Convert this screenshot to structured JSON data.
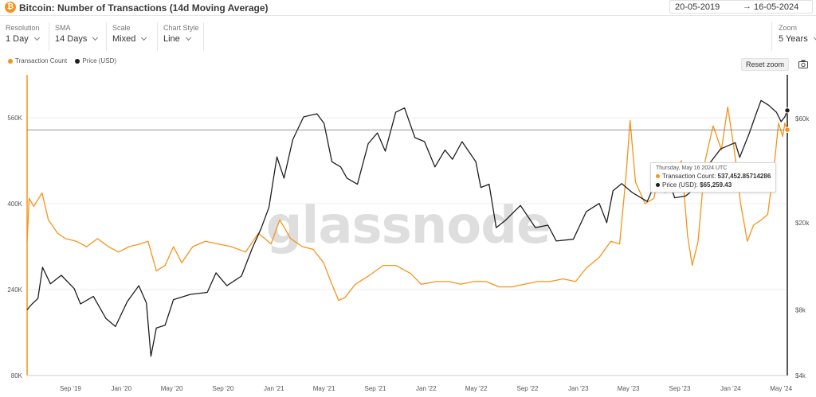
{
  "header": {
    "icon_glyph": "₿",
    "title": "Bitcoin: Number of Transactions (14d Moving Average)",
    "date_from": "20-05-2019",
    "date_arrow": "→",
    "date_to": "16-05-2024"
  },
  "controls": {
    "resolution": {
      "label": "Resolution",
      "value": "1 Day"
    },
    "sma": {
      "label": "SMA",
      "value": "14 Days"
    },
    "scale": {
      "label": "Scale",
      "value": "Mixed"
    },
    "chart_style": {
      "label": "Chart Style",
      "value": "Line"
    },
    "zoom": {
      "label": "Zoom",
      "value": "5 Years"
    }
  },
  "legend": {
    "transaction_count": "Transaction Count",
    "price": "Price (USD)"
  },
  "reset_zoom_label": "Reset zoom",
  "watermark": "glassnode",
  "colors": {
    "transaction_count": "#f7931a",
    "price": "#1e1e1e",
    "grid": "#ececec",
    "crosshair": "#555555"
  },
  "icons": [
    "bitcoin-icon",
    "calendar-arrow-icon",
    "chevron-down-icon",
    "camera-icon"
  ],
  "tooltip": {
    "date": "Thursday, May 16 2024 UTC",
    "tx_label": "Transaction Count:",
    "tx_value": "537,452.85714286",
    "price_label": "Price (USD):",
    "price_value": "$65,259.43"
  },
  "chart_data": {
    "type": "line",
    "title": "Bitcoin: Number of Transactions (14d Moving Average)",
    "x_ticks": [
      "Sep '19",
      "Jan '20",
      "May '20",
      "Sep '20",
      "Jan '21",
      "May '21",
      "Sep '21",
      "Jan '22",
      "May '22",
      "Sep '22",
      "Jan '23",
      "May '23",
      "Sep '23",
      "Jan '24",
      "May '24"
    ],
    "x_range": [
      "2019-05-20",
      "2024-05-16"
    ],
    "left_axis": {
      "label": "Transaction Count",
      "ticks": [
        "80K",
        "240K",
        "400K",
        "560K"
      ],
      "range": [
        80000,
        640000
      ]
    },
    "right_axis": {
      "label": "Price (USD)",
      "scale": "log",
      "ticks": [
        "$4k",
        "$8k",
        "$20k",
        "$60k"
      ],
      "range": [
        4000,
        95000
      ]
    },
    "grid": true,
    "series": [
      {
        "name": "Transaction Count",
        "axis": "left",
        "color": "#f7931a",
        "points": [
          [
            "2019-05-20",
            330000
          ],
          [
            "2019-05-25",
            410000
          ],
          [
            "2019-06-05",
            395000
          ],
          [
            "2019-06-25",
            420000
          ],
          [
            "2019-07-10",
            370000
          ],
          [
            "2019-08-01",
            345000
          ],
          [
            "2019-08-20",
            335000
          ],
          [
            "2019-09-15",
            330000
          ],
          [
            "2019-10-10",
            320000
          ],
          [
            "2019-11-05",
            335000
          ],
          [
            "2019-12-01",
            320000
          ],
          [
            "2019-12-25",
            310000
          ],
          [
            "2020-01-20",
            320000
          ],
          [
            "2020-02-15",
            325000
          ],
          [
            "2020-03-05",
            330000
          ],
          [
            "2020-03-25",
            275000
          ],
          [
            "2020-04-15",
            285000
          ],
          [
            "2020-05-05",
            320000
          ],
          [
            "2020-05-25",
            290000
          ],
          [
            "2020-06-20",
            320000
          ],
          [
            "2020-07-20",
            330000
          ],
          [
            "2020-08-20",
            325000
          ],
          [
            "2020-09-20",
            320000
          ],
          [
            "2020-10-25",
            310000
          ],
          [
            "2020-11-25",
            345000
          ],
          [
            "2020-12-25",
            325000
          ],
          [
            "2021-01-15",
            370000
          ],
          [
            "2021-02-10",
            335000
          ],
          [
            "2021-03-10",
            320000
          ],
          [
            "2021-04-05",
            315000
          ],
          [
            "2021-04-30",
            290000
          ],
          [
            "2021-05-20",
            250000
          ],
          [
            "2021-06-05",
            220000
          ],
          [
            "2021-06-20",
            225000
          ],
          [
            "2021-07-15",
            250000
          ],
          [
            "2021-08-15",
            265000
          ],
          [
            "2021-09-20",
            285000
          ],
          [
            "2021-10-20",
            285000
          ],
          [
            "2021-11-25",
            270000
          ],
          [
            "2021-12-20",
            250000
          ],
          [
            "2022-01-25",
            255000
          ],
          [
            "2022-02-25",
            255000
          ],
          [
            "2022-03-25",
            250000
          ],
          [
            "2022-04-25",
            255000
          ],
          [
            "2022-05-25",
            255000
          ],
          [
            "2022-06-25",
            245000
          ],
          [
            "2022-07-25",
            245000
          ],
          [
            "2022-08-25",
            250000
          ],
          [
            "2022-09-25",
            255000
          ],
          [
            "2022-10-25",
            255000
          ],
          [
            "2022-11-25",
            260000
          ],
          [
            "2022-12-25",
            255000
          ],
          [
            "2023-01-20",
            280000
          ],
          [
            "2023-02-20",
            300000
          ],
          [
            "2023-03-20",
            330000
          ],
          [
            "2023-04-10",
            325000
          ],
          [
            "2023-04-25",
            450000
          ],
          [
            "2023-05-05",
            555000
          ],
          [
            "2023-05-18",
            440000
          ],
          [
            "2023-06-10",
            400000
          ],
          [
            "2023-07-01",
            410000
          ],
          [
            "2023-07-15",
            460000
          ],
          [
            "2023-07-28",
            420000
          ],
          [
            "2023-08-15",
            450000
          ],
          [
            "2023-09-05",
            480000
          ],
          [
            "2023-09-20",
            340000
          ],
          [
            "2023-10-01",
            285000
          ],
          [
            "2023-10-15",
            330000
          ],
          [
            "2023-11-01",
            480000
          ],
          [
            "2023-11-20",
            545000
          ],
          [
            "2023-12-10",
            500000
          ],
          [
            "2023-12-25",
            580000
          ],
          [
            "2024-01-10",
            500000
          ],
          [
            "2024-01-25",
            400000
          ],
          [
            "2024-02-10",
            330000
          ],
          [
            "2024-02-25",
            360000
          ],
          [
            "2024-03-15",
            370000
          ],
          [
            "2024-03-30",
            380000
          ],
          [
            "2024-04-15",
            475000
          ],
          [
            "2024-04-25",
            550000
          ],
          [
            "2024-05-05",
            525000
          ],
          [
            "2024-05-10",
            550000
          ],
          [
            "2024-05-16",
            537453
          ]
        ]
      },
      {
        "name": "Price (USD)",
        "axis": "right",
        "color": "#1e1e1e",
        "points": [
          [
            "2019-05-20",
            8000
          ],
          [
            "2019-06-01",
            8500
          ],
          [
            "2019-06-15",
            9000
          ],
          [
            "2019-06-26",
            12500
          ],
          [
            "2019-07-15",
            10500
          ],
          [
            "2019-08-10",
            11500
          ],
          [
            "2019-09-10",
            10000
          ],
          [
            "2019-09-25",
            8500
          ],
          [
            "2019-10-26",
            9200
          ],
          [
            "2019-11-25",
            7300
          ],
          [
            "2019-12-18",
            6700
          ],
          [
            "2020-01-15",
            8700
          ],
          [
            "2020-02-12",
            10300
          ],
          [
            "2020-03-01",
            8600
          ],
          [
            "2020-03-12",
            4900
          ],
          [
            "2020-03-25",
            6600
          ],
          [
            "2020-04-15",
            6800
          ],
          [
            "2020-05-05",
            8900
          ],
          [
            "2020-06-15",
            9400
          ],
          [
            "2020-07-25",
            9600
          ],
          [
            "2020-08-15",
            11800
          ],
          [
            "2020-09-10",
            10300
          ],
          [
            "2020-10-15",
            11400
          ],
          [
            "2020-11-10",
            15300
          ],
          [
            "2020-12-01",
            18800
          ],
          [
            "2020-12-20",
            23500
          ],
          [
            "2021-01-08",
            40000
          ],
          [
            "2021-01-25",
            32000
          ],
          [
            "2021-02-15",
            48000
          ],
          [
            "2021-03-13",
            61000
          ],
          [
            "2021-04-14",
            63000
          ],
          [
            "2021-05-01",
            57000
          ],
          [
            "2021-05-20",
            38000
          ],
          [
            "2021-06-10",
            36000
          ],
          [
            "2021-06-25",
            32000
          ],
          [
            "2021-07-20",
            30000
          ],
          [
            "2021-08-15",
            46000
          ],
          [
            "2021-09-06",
            51500
          ],
          [
            "2021-09-25",
            42500
          ],
          [
            "2021-10-20",
            64000
          ],
          [
            "2021-11-10",
            67000
          ],
          [
            "2021-12-05",
            49000
          ],
          [
            "2021-12-28",
            47000
          ],
          [
            "2022-01-22",
            36000
          ],
          [
            "2022-02-15",
            43000
          ],
          [
            "2022-03-05",
            39000
          ],
          [
            "2022-03-28",
            47000
          ],
          [
            "2022-04-30",
            38000
          ],
          [
            "2022-05-12",
            29000
          ],
          [
            "2022-06-01",
            30000
          ],
          [
            "2022-06-18",
            19000
          ],
          [
            "2022-07-10",
            20500
          ],
          [
            "2022-08-15",
            24000
          ],
          [
            "2022-09-20",
            19000
          ],
          [
            "2022-10-20",
            19500
          ],
          [
            "2022-11-09",
            16500
          ],
          [
            "2022-12-20",
            16800
          ],
          [
            "2023-01-20",
            22500
          ],
          [
            "2023-02-20",
            24500
          ],
          [
            "2023-03-10",
            20000
          ],
          [
            "2023-03-25",
            28000
          ],
          [
            "2023-04-15",
            30200
          ],
          [
            "2023-05-10",
            27500
          ],
          [
            "2023-06-15",
            25000
          ],
          [
            "2023-07-05",
            30500
          ],
          [
            "2023-08-10",
            29500
          ],
          [
            "2023-08-20",
            26000
          ],
          [
            "2023-09-15",
            26500
          ],
          [
            "2023-10-20",
            30000
          ],
          [
            "2023-11-10",
            37000
          ],
          [
            "2023-12-08",
            43500
          ],
          [
            "2024-01-12",
            46500
          ],
          [
            "2024-01-23",
            39800
          ],
          [
            "2024-02-15",
            51500
          ],
          [
            "2024-03-01",
            62000
          ],
          [
            "2024-03-14",
            72500
          ],
          [
            "2024-04-01",
            69000
          ],
          [
            "2024-04-20",
            64000
          ],
          [
            "2024-05-01",
            58000
          ],
          [
            "2024-05-10",
            61000
          ],
          [
            "2024-05-16",
            65259
          ]
        ]
      }
    ]
  }
}
